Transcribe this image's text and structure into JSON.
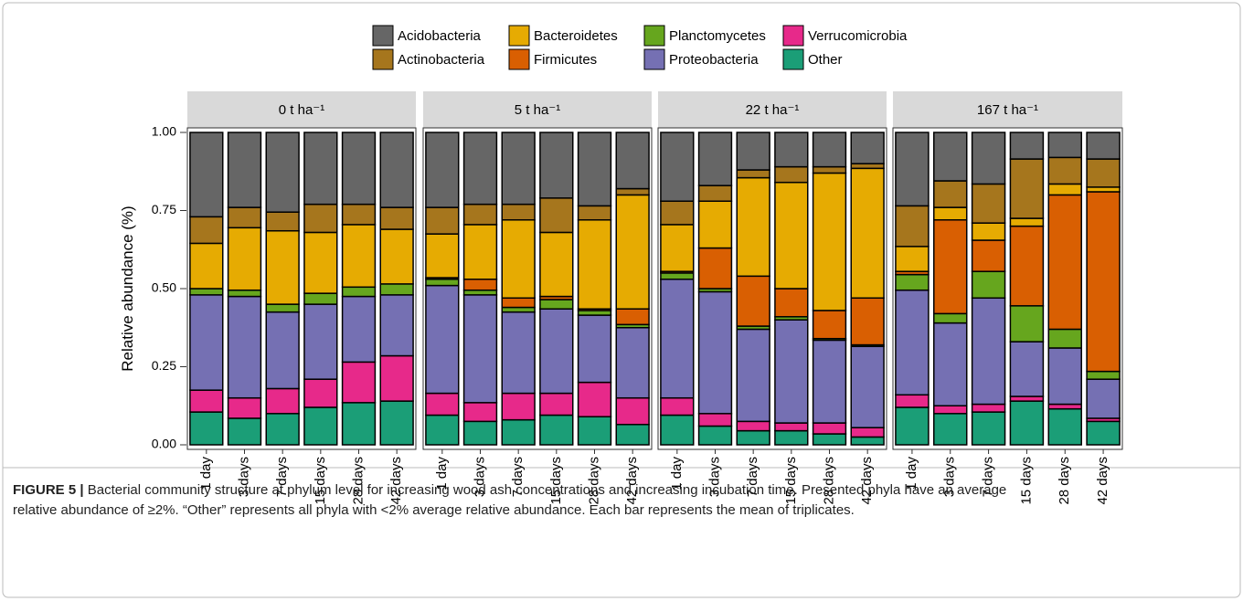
{
  "chart_data": {
    "type": "stacked-bar",
    "ylabel": "Relative abundance (%)",
    "facets": [
      "0 t ha⁻¹",
      "5 t ha⁻¹",
      "22 t ha⁻¹",
      "167 t ha⁻¹"
    ],
    "categories": [
      "1 day",
      "3 days",
      "7 days",
      "15 days",
      "28 days",
      "42 days"
    ],
    "ylim": [
      0,
      1
    ],
    "yticks": [
      {
        "value": 0,
        "label": "0.00"
      },
      0.25,
      {
        "value": 0.5,
        "label": "0.50"
      },
      0.75,
      {
        "value": 1,
        "label": "1.00"
      }
    ],
    "series": [
      {
        "name": "Acidobacteria",
        "color": "#666666",
        "values": [
          [
            0.27,
            0.24,
            0.255,
            0.23,
            0.23,
            0.24
          ],
          [
            0.24,
            0.23,
            0.23,
            0.21,
            0.235,
            0.18
          ],
          [
            0.22,
            0.17,
            0.12,
            0.11,
            0.11,
            0.1
          ],
          [
            0.235,
            0.155,
            0.165,
            0.085,
            0.08,
            0.085
          ]
        ]
      },
      {
        "name": "Actinobacteria",
        "color": "#a6761d",
        "values": [
          [
            0.085,
            0.065,
            0.06,
            0.09,
            0.065,
            0.07
          ],
          [
            0.085,
            0.065,
            0.05,
            0.11,
            0.045,
            0.02
          ],
          [
            0.075,
            0.05,
            0.025,
            0.05,
            0.02,
            0.015
          ],
          [
            0.13,
            0.085,
            0.125,
            0.19,
            0.085,
            0.09
          ]
        ]
      },
      {
        "name": "Bacteroidetes",
        "color": "#e6ab02",
        "values": [
          [
            0.145,
            0.2,
            0.235,
            0.195,
            0.2,
            0.175
          ],
          [
            0.14,
            0.175,
            0.25,
            0.205,
            0.285,
            0.365
          ],
          [
            0.15,
            0.15,
            0.315,
            0.34,
            0.44,
            0.415
          ],
          [
            0.08,
            0.04,
            0.055,
            0.025,
            0.035,
            0.015
          ]
        ]
      },
      {
        "name": "Firmicutes",
        "color": "#d95f02",
        "values": [
          [
            0,
            0,
            0,
            0,
            0,
            0
          ],
          [
            0.005,
            0.035,
            0.03,
            0.01,
            0.005,
            0.05
          ],
          [
            0.005,
            0.13,
            0.16,
            0.09,
            0.09,
            0.15
          ],
          [
            0.01,
            0.3,
            0.1,
            0.255,
            0.43,
            0.575
          ]
        ]
      },
      {
        "name": "Planctomycetes",
        "color": "#66a61e",
        "values": [
          [
            0.02,
            0.02,
            0.025,
            0.035,
            0.03,
            0.035
          ],
          [
            0.02,
            0.015,
            0.015,
            0.03,
            0.015,
            0.01
          ],
          [
            0.02,
            0.01,
            0.01,
            0.01,
            0.005,
            0.005
          ],
          [
            0.05,
            0.03,
            0.085,
            0.115,
            0.06,
            0.025
          ]
        ]
      },
      {
        "name": "Proteobacteria",
        "color": "#7570b3",
        "values": [
          [
            0.305,
            0.325,
            0.245,
            0.24,
            0.21,
            0.195
          ],
          [
            0.345,
            0.345,
            0.26,
            0.27,
            0.215,
            0.225
          ],
          [
            0.38,
            0.39,
            0.295,
            0.33,
            0.265,
            0.26
          ],
          [
            0.335,
            0.265,
            0.34,
            0.175,
            0.18,
            0.125
          ]
        ]
      },
      {
        "name": "Verrucomicrobia",
        "color": "#e7298a",
        "values": [
          [
            0.07,
            0.065,
            0.08,
            0.09,
            0.13,
            0.145
          ],
          [
            0.07,
            0.06,
            0.085,
            0.07,
            0.11,
            0.085
          ],
          [
            0.055,
            0.04,
            0.03,
            0.025,
            0.035,
            0.03
          ],
          [
            0.04,
            0.025,
            0.025,
            0.015,
            0.015,
            0.01
          ]
        ]
      },
      {
        "name": "Other",
        "color": "#1b9e77",
        "values": [
          [
            0.105,
            0.085,
            0.1,
            0.12,
            0.135,
            0.14
          ],
          [
            0.095,
            0.075,
            0.08,
            0.095,
            0.09,
            0.065
          ],
          [
            0.095,
            0.06,
            0.045,
            0.045,
            0.035,
            0.025
          ],
          [
            0.12,
            0.1,
            0.105,
            0.14,
            0.115,
            0.075
          ]
        ]
      }
    ]
  },
  "caption": {
    "label": "FIGURE 5 |",
    "lines": [
      "Bacterial community structure at phylum level for increasing wood ash concentrations and increasing incubation time. Presented phyla have an average",
      "relative abundance of ≥2%. “Other” represents all phyla with <2% average relative abundance. Each bar represents the mean of triplicates."
    ]
  }
}
